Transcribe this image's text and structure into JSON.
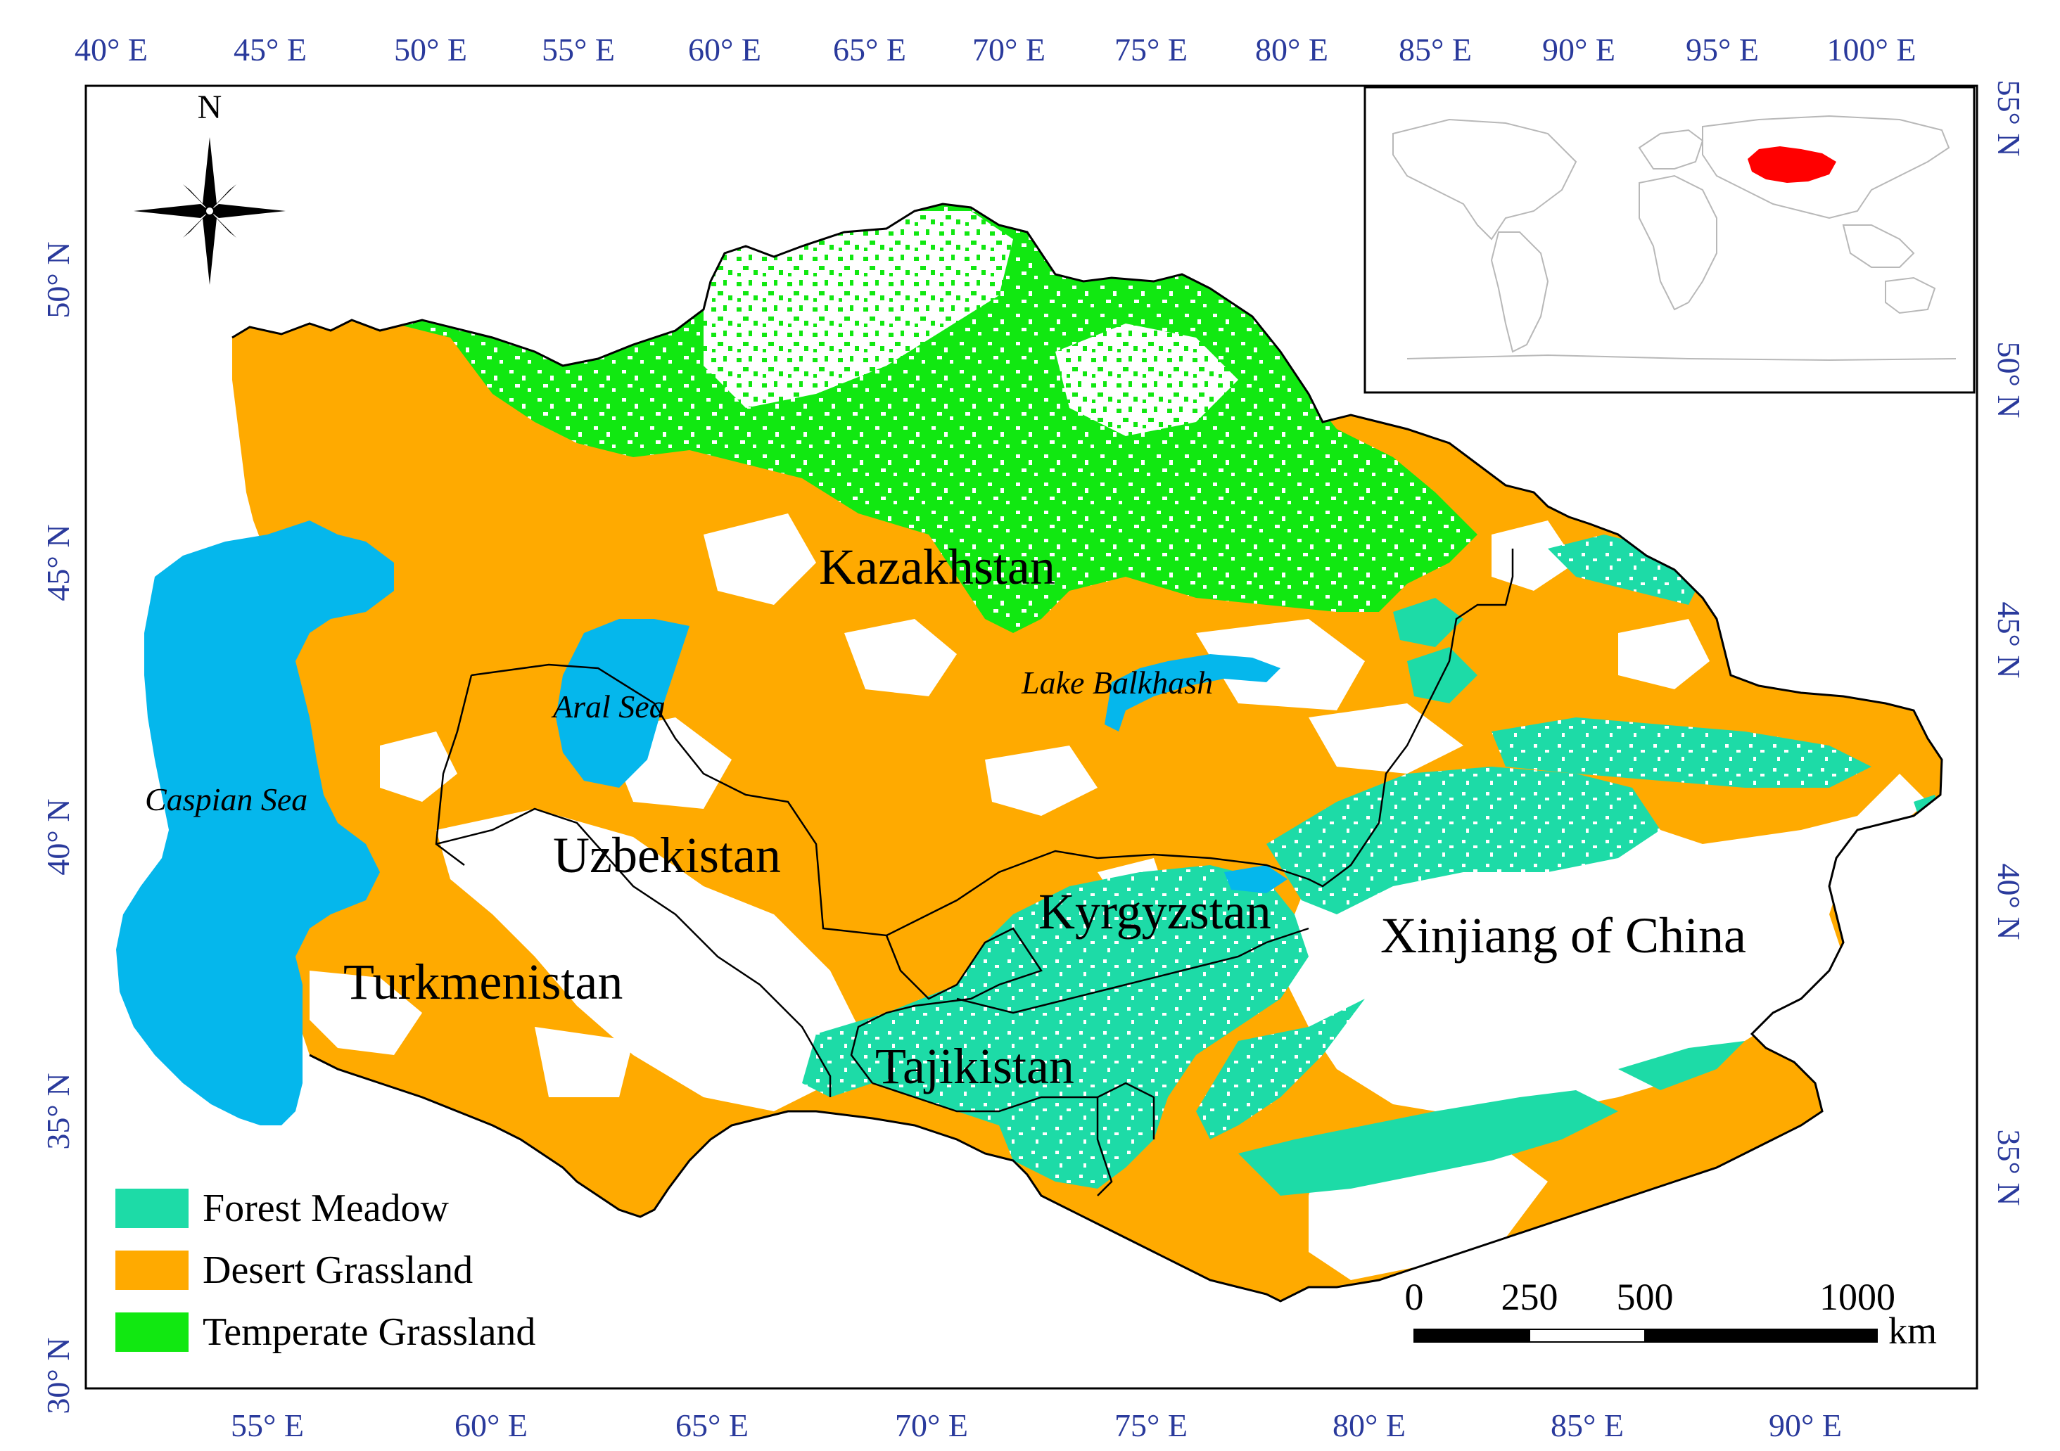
{
  "colors": {
    "forest_meadow": "#1ddba7",
    "desert_grassland": "#ffaa00",
    "temperate_grassland": "#11e811",
    "water": "#05b7ec",
    "axis_text": "#2a3a9c",
    "inset_highlight": "#ff0000"
  },
  "axes": {
    "top_lon": [
      "40° E",
      "45° E",
      "50° E",
      "55° E",
      "60° E",
      "65° E",
      "70° E",
      "75° E",
      "80° E",
      "85° E",
      "90° E",
      "95° E",
      "100° E"
    ],
    "bottom_lon": [
      "55° E",
      "60° E",
      "65° E",
      "70° E",
      "75° E",
      "80° E",
      "85° E",
      "90° E"
    ],
    "left_lat": [
      "50° N",
      "45° N",
      "40° N",
      "35° N",
      "30° N"
    ],
    "right_lat": [
      "55° N",
      "50° N",
      "45° N",
      "40° N",
      "35° N"
    ]
  },
  "north_arrow": {
    "label": "N",
    "icon": "compass-rose-icon"
  },
  "countries": {
    "kazakhstan": "Kazakhstan",
    "uzbekistan": "Uzbekistan",
    "turkmenistan": "Turkmenistan",
    "kyrgyzstan": "Kyrgyzstan",
    "tajikistan": "Tajikistan",
    "xinjiang": "Xinjiang of China"
  },
  "water_bodies": {
    "aral": "Aral Sea",
    "caspian": "Caspian Sea",
    "balkhash": "Lake Balkhash"
  },
  "legend": [
    {
      "label": "Forest Meadow",
      "color": "#1ddba7"
    },
    {
      "label": "Desert Grassland",
      "color": "#ffaa00"
    },
    {
      "label": "Temperate Grassland",
      "color": "#11e811"
    }
  ],
  "scale_bar": {
    "ticks": [
      "0",
      "250",
      "500",
      "1000"
    ],
    "unit": "km"
  }
}
